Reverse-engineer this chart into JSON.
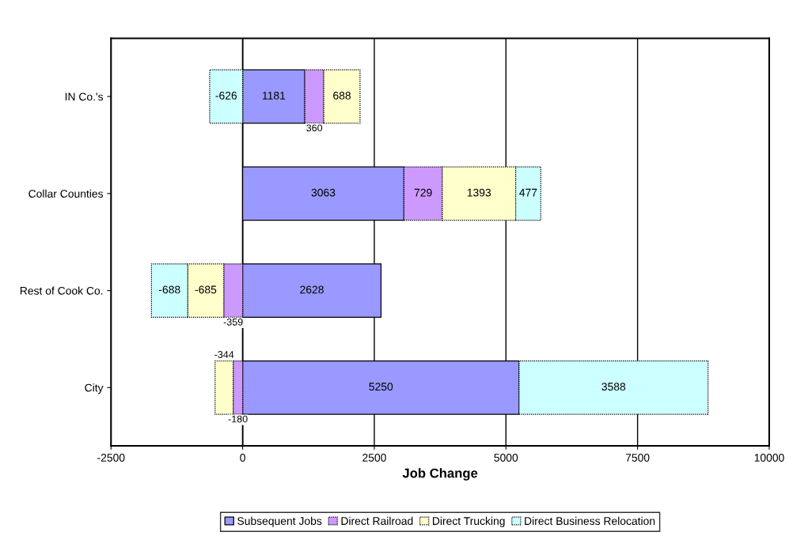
{
  "chart_data": {
    "type": "bar",
    "orientation": "horizontal",
    "stacked": true,
    "xlabel": "Job Change",
    "categories": [
      "IN Co.'s",
      "Collar Counties",
      "Rest of Cook Co.",
      "City"
    ],
    "series": [
      {
        "name": "Subsequent Jobs",
        "color": "#9999ff",
        "values": [
          1181,
          3063,
          2628,
          5250
        ]
      },
      {
        "name": "Direct Railroad",
        "color": "#cc99ff",
        "values": [
          360,
          729,
          -359,
          -180
        ]
      },
      {
        "name": "Direct Trucking",
        "color": "#ffffcc",
        "values": [
          688,
          1393,
          -685,
          -344
        ]
      },
      {
        "name": "Direct Business Relocation",
        "color": "#ccffff",
        "values": [
          -626,
          477,
          -688,
          3588
        ]
      }
    ],
    "xlim": [
      -2500,
      10000
    ],
    "xticks": [
      -2500,
      0,
      2500,
      5000,
      7500,
      10000
    ],
    "grid": "x",
    "legend": "bottom",
    "data_labels": true
  }
}
